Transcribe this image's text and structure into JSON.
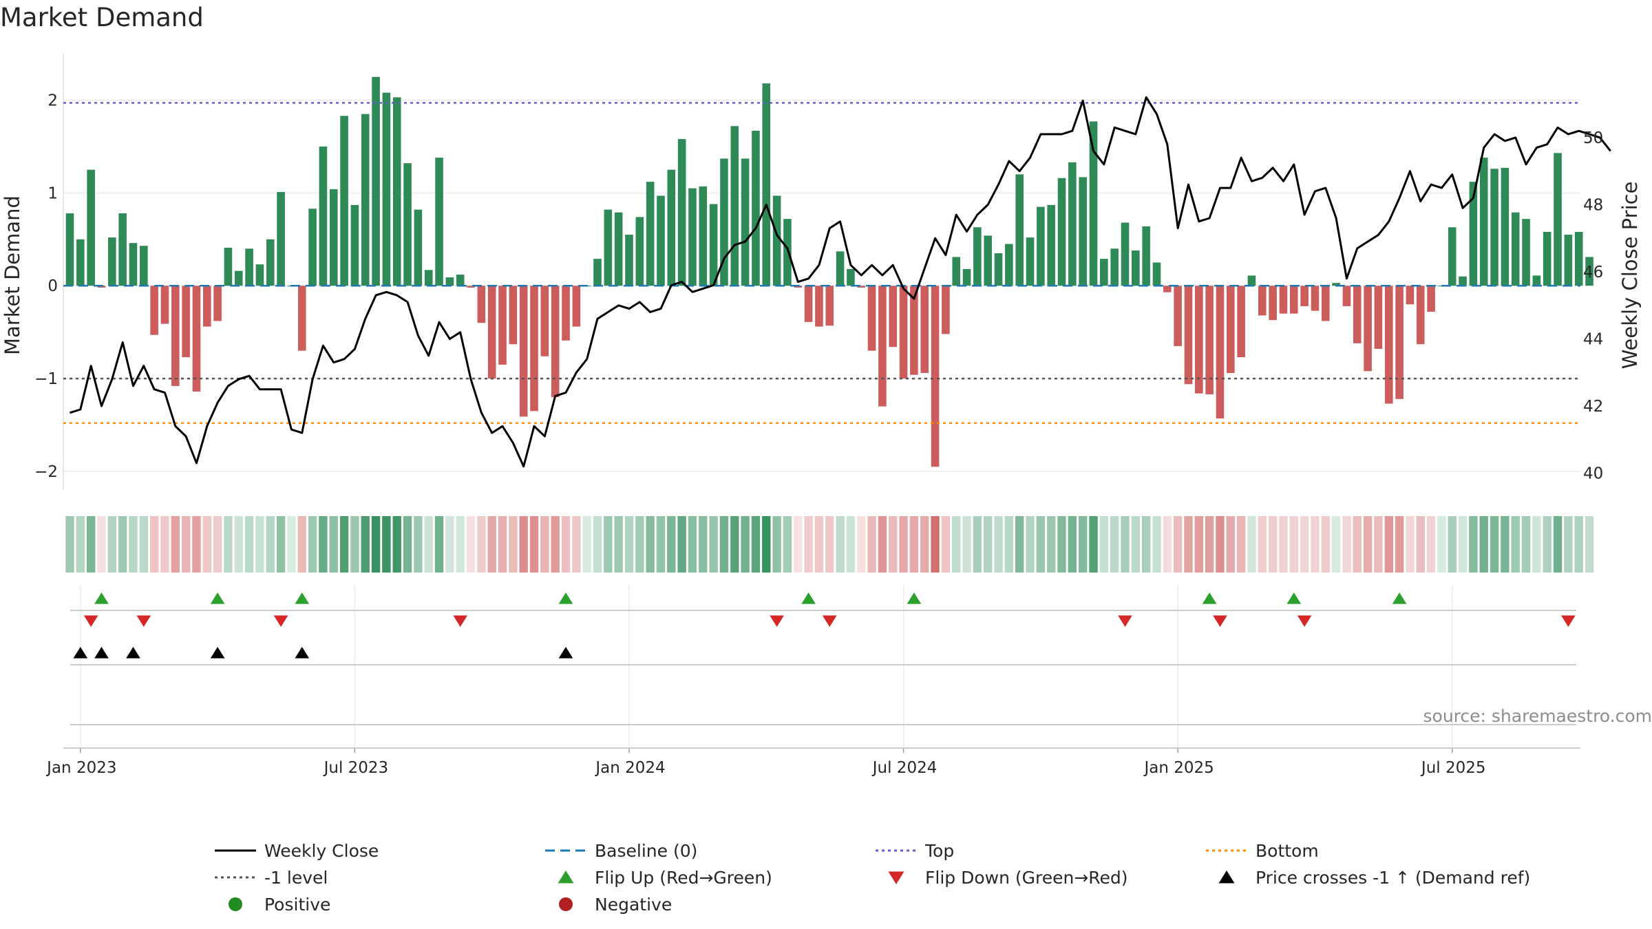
{
  "chart_data": {
    "type": "bar",
    "title": "Market Demand",
    "ylabel": "Market Demand",
    "y2label": "Weekly Close Price",
    "source": "source: sharemaestro.com",
    "ylim": [
      -2.2,
      2.5
    ],
    "y2lim": [
      39.5,
      52.5
    ],
    "yticks": [
      "2",
      "1",
      "0",
      "−1",
      "−2"
    ],
    "yticks_values": [
      2,
      1,
      0,
      -1,
      -2
    ],
    "y2ticks": [
      "50",
      "48",
      "46",
      "44",
      "42",
      "40"
    ],
    "y2ticks_values": [
      50,
      48,
      46,
      44,
      42,
      40
    ],
    "xticks": [
      "Jan 2023",
      "Jul 2023",
      "Jan 2024",
      "Jul 2024",
      "Jan 2025",
      "Jul 2025"
    ],
    "xticks_week": [
      1,
      27,
      53,
      79,
      105,
      131
    ],
    "reference_lines": {
      "top": 1.97,
      "minus_one": -1.0,
      "bottom": -1.48,
      "baseline": 0
    },
    "demand": [
      0.78,
      0.5,
      1.25,
      -0.02,
      0.52,
      0.78,
      0.46,
      0.43,
      -0.53,
      -0.41,
      -1.08,
      -0.77,
      -1.14,
      -0.44,
      -0.38,
      0.41,
      0.16,
      0.4,
      0.23,
      0.5,
      1.01,
      0,
      -0.7,
      0.83,
      1.5,
      1.04,
      1.83,
      0.87,
      1.85,
      2.25,
      2.08,
      2.03,
      1.32,
      0.82,
      0.17,
      1.38,
      0.09,
      0.12,
      -0.02,
      -0.4,
      -1.0,
      -0.85,
      -0.63,
      -1.41,
      -1.35,
      -0.76,
      -1.2,
      -0.59,
      -0.44,
      0,
      0.29,
      0.82,
      0.79,
      0.55,
      0.74,
      1.12,
      0.97,
      1.25,
      1.58,
      1.05,
      1.07,
      0.88,
      1.37,
      1.72,
      1.37,
      1.67,
      2.18,
      0.97,
      0.72,
      -0.02,
      -0.39,
      -0.44,
      -0.43,
      0.37,
      0.18,
      -0.02,
      -0.7,
      -1.3,
      -0.66,
      -1.0,
      -0.96,
      -0.94,
      -1.95,
      -0.52,
      0.31,
      0.18,
      0.63,
      0.54,
      0.35,
      0.45,
      1.2,
      0.52,
      0.85,
      0.87,
      1.16,
      1.33,
      1.17,
      1.77,
      0.29,
      0.4,
      0.68,
      0.38,
      0.64,
      0.25,
      -0.07,
      -0.65,
      -1.06,
      -1.16,
      -1.17,
      -1.43,
      -0.94,
      -0.77,
      0.11,
      -0.32,
      -0.37,
      -0.3,
      -0.3,
      -0.22,
      -0.27,
      -0.38,
      0.03,
      -0.22,
      -0.62,
      -0.92,
      -0.68,
      -1.27,
      -1.22,
      -0.2,
      -0.63,
      -0.28,
      0,
      0.63,
      0.1,
      1.12,
      1.38,
      1.26,
      1.27,
      0.79,
      0.72,
      0.11,
      0.58,
      1.43,
      0.55,
      0.58,
      0.31
    ],
    "weekly_close": [
      41.8,
      41.9,
      43.2,
      42.0,
      42.8,
      43.9,
      42.6,
      43.2,
      42.5,
      42.4,
      41.4,
      41.1,
      40.3,
      41.4,
      42.1,
      42.6,
      42.8,
      42.9,
      42.5,
      42.5,
      42.5,
      41.3,
      41.2,
      42.8,
      43.8,
      43.3,
      43.4,
      43.7,
      44.6,
      45.3,
      45.4,
      45.3,
      45.1,
      44.1,
      43.5,
      44.5,
      44.0,
      44.2,
      42.8,
      41.8,
      41.2,
      41.4,
      40.9,
      40.2,
      41.4,
      41.1,
      42.3,
      42.4,
      43.0,
      43.4,
      44.6,
      44.8,
      45.0,
      44.9,
      45.1,
      44.8,
      44.9,
      45.6,
      45.7,
      45.4,
      45.5,
      45.6,
      46.4,
      46.8,
      46.9,
      47.3,
      48.0,
      47.1,
      46.7,
      45.7,
      45.8,
      46.2,
      47.3,
      47.5,
      46.2,
      45.9,
      46.2,
      45.9,
      46.2,
      45.5,
      45.2,
      46.1,
      47.0,
      46.5,
      47.7,
      47.2,
      47.7,
      48.0,
      48.6,
      49.3,
      49.0,
      49.4,
      50.1,
      50.1,
      50.1,
      50.2,
      51.1,
      49.6,
      49.2,
      50.3,
      50.2,
      50.1,
      51.2,
      50.7,
      49.8,
      47.3,
      48.6,
      47.5,
      47.6,
      48.5,
      48.5,
      49.4,
      48.7,
      48.8,
      49.1,
      48.7,
      49.2,
      47.7,
      48.4,
      48.5,
      47.6,
      45.8,
      46.7,
      46.9,
      47.1,
      47.5,
      48.2,
      49.0,
      48.1,
      48.6,
      48.5,
      48.9,
      47.9,
      48.2,
      49.7,
      50.1,
      49.9,
      50.0,
      49.2,
      49.7,
      49.8,
      50.3,
      50.1,
      50.2,
      50.1,
      50.0,
      49.6
    ]
  },
  "legend": [
    {
      "label": "Weekly Close",
      "marker": "line-black"
    },
    {
      "label": "Baseline (0)",
      "marker": "dash-blue"
    },
    {
      "label": "Top",
      "marker": "dot-purple"
    },
    {
      "label": "Bottom",
      "marker": "dot-orange"
    },
    {
      "label": "-1 level",
      "marker": "dot-gray"
    },
    {
      "label": "Flip Up (Red→Green)",
      "marker": "triangle-up-green"
    },
    {
      "label": "Flip Down (Green→Red)",
      "marker": "triangle-down-red"
    },
    {
      "label": "Price crosses -1 ↑ (Demand ref)",
      "marker": "triangle-up-black"
    },
    {
      "label": "Positive",
      "marker": "circle-green"
    },
    {
      "label": "Negative",
      "marker": "circle-red"
    }
  ],
  "events": {
    "flip_up_weeks": [
      3,
      14,
      22,
      47,
      70,
      80,
      108,
      116,
      126
    ],
    "flip_down_weeks": [
      2,
      7,
      20,
      37,
      67,
      72,
      100,
      109,
      117,
      142
    ],
    "price_cross_weeks": [
      1,
      3,
      6,
      14,
      22,
      47
    ]
  },
  "colors": {
    "positive": "#2e8b57",
    "negative": "#cd5c5c",
    "price_line": "#000000",
    "top_line": "#6a5acd",
    "bottom_line": "#ff8c00",
    "minus_one_line": "#555555",
    "baseline": "#1f77b4",
    "flip_up": "#2ca02c",
    "flip_down": "#d62728",
    "legend_positive": "#228b22",
    "legend_negative": "#b22222"
  }
}
